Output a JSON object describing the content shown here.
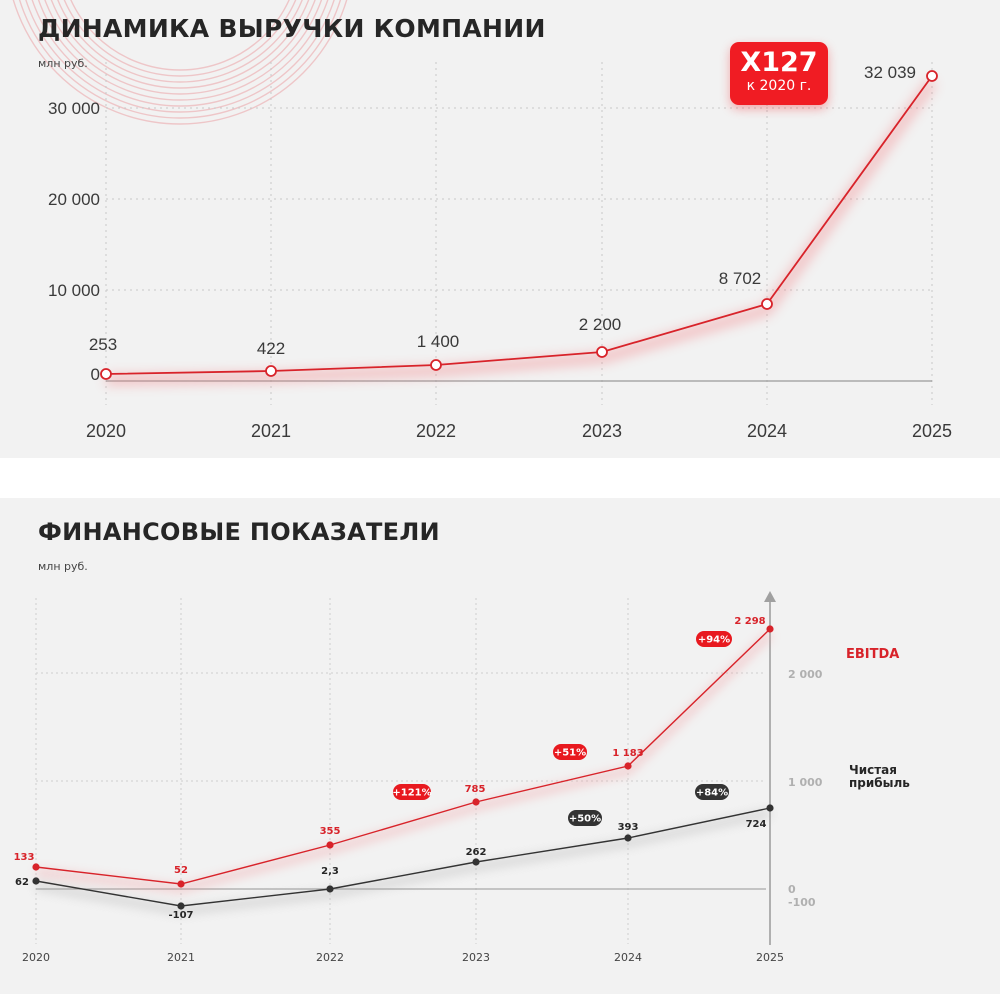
{
  "revenue_panel": {
    "title": "ДИНАМИКА ВЫРУЧКИ КОМПАНИИ",
    "unit": "млн руб.",
    "badge": {
      "main": "X127",
      "sub": "к 2020 г."
    },
    "colors": {
      "accent": "#e8222a",
      "line": "#d8232a",
      "badge": "#f01c23"
    }
  },
  "finance_panel": {
    "title": "ФИНАНСОВЫЕ ПОКАЗАТЕЛИ",
    "unit": "млн руб.",
    "legend": {
      "ebitda": "EBITDA",
      "net_profit_line1": "Чистая",
      "net_profit_line2": "прибыль"
    },
    "colors": {
      "ebitda": "#d8232a",
      "net_profit": "#333333",
      "badge_red": "#e8191f",
      "badge_dark": "#333333"
    }
  },
  "chart_data": [
    {
      "type": "line",
      "title": "ДИНАМИКА ВЫРУЧКИ КОМПАНИИ",
      "ylabel": "млн руб.",
      "xlabel": "",
      "categories": [
        "2020",
        "2021",
        "2022",
        "2023",
        "2024",
        "2025"
      ],
      "series": [
        {
          "name": "Выручка",
          "values": [
            253,
            422,
            1400,
            2200,
            8702,
            32039
          ],
          "labels": [
            "253",
            "422",
            "1 400",
            "2 200",
            "8 702",
            "32 039"
          ]
        }
      ],
      "yticks": [
        "0",
        "10 000",
        "20 000",
        "30 000"
      ],
      "ylim": [
        0,
        33000
      ],
      "grid": true,
      "annotations": [
        {
          "text": "X127 к 2020 г.",
          "near": "2025"
        }
      ]
    },
    {
      "type": "line",
      "title": "ФИНАНСОВЫЕ ПОКАЗАТЕЛИ",
      "ylabel": "млн руб.",
      "xlabel": "",
      "categories": [
        "2020",
        "2021",
        "2022",
        "2023",
        "2024",
        "2025"
      ],
      "series": [
        {
          "name": "EBITDA",
          "values": [
            133,
            52,
            355,
            785,
            1183,
            2298
          ],
          "labels": [
            "133",
            "52",
            "355",
            "785",
            "1 183",
            "2 298"
          ],
          "growth_badges": [
            {
              "text": "+121%",
              "between": [
                "2022",
                "2023"
              ]
            },
            {
              "text": "+51%",
              "between": [
                "2023",
                "2024"
              ]
            },
            {
              "text": "+94%",
              "between": [
                "2024",
                "2025"
              ]
            }
          ]
        },
        {
          "name": "Чистая прибыль",
          "values": [
            62,
            -107,
            2.3,
            262,
            393,
            724
          ],
          "labels": [
            "62",
            "-107",
            "2,3",
            "262",
            "393",
            "724"
          ],
          "growth_badges": [
            {
              "text": "+50%",
              "between": [
                "2023",
                "2024"
              ]
            },
            {
              "text": "+84%",
              "between": [
                "2024",
                "2025"
              ]
            }
          ]
        }
      ],
      "yticks": [
        "-100",
        "0",
        "1 000",
        "2 000"
      ],
      "ylim": [
        -150,
        2500
      ],
      "grid": true,
      "legend_position": "right"
    }
  ]
}
